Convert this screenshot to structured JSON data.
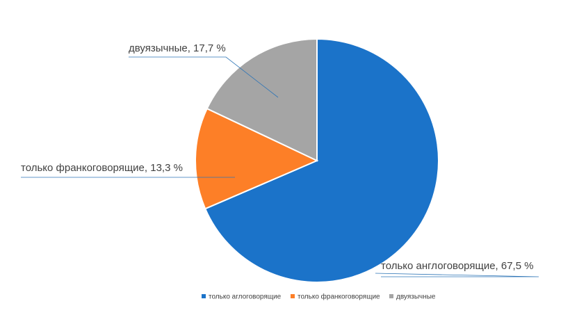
{
  "chart_data": {
    "type": "pie",
    "categories": [
      "только аглоговорящие",
      "только франкоговорящие",
      "двуязычные"
    ],
    "values": [
      67.5,
      13.3,
      17.7
    ],
    "value_labels": [
      "только англоговорящие, 67,5 %",
      "только франкоговорящие, 13,3 %",
      "двуязычные, 17,7 %"
    ],
    "colors": [
      "#1b73c9",
      "#fd7f27",
      "#a5a5a5"
    ],
    "legend": "bottom"
  }
}
